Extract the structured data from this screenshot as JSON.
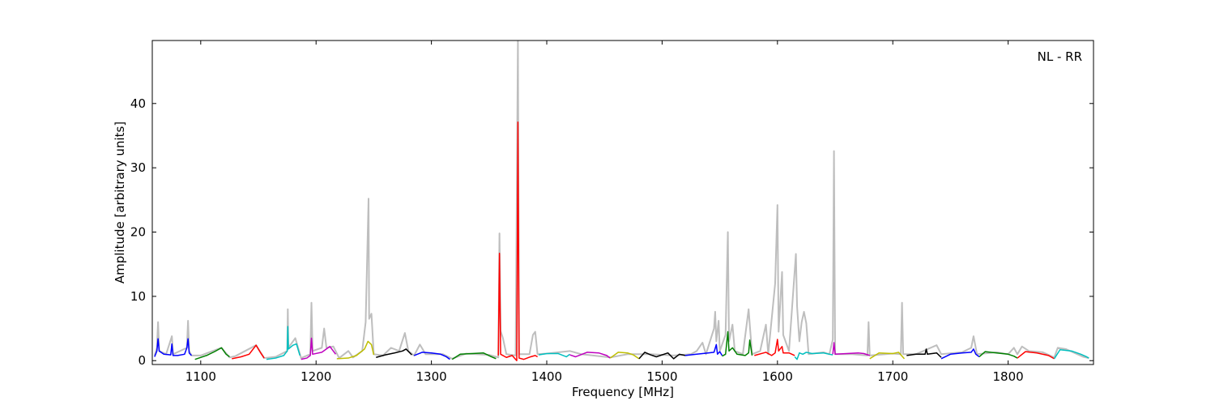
{
  "chart_data": {
    "type": "line",
    "xlabel": "Frequency [MHz]",
    "ylabel": "Amplitude [arbitrary units]",
    "annotation": "NL - RR",
    "xlim": [
      1058,
      1874
    ],
    "ylim": [
      -0.6,
      49.8
    ],
    "xticks": [
      1100,
      1200,
      1300,
      1400,
      1500,
      1600,
      1700,
      1800
    ],
    "yticks": [
      0,
      10,
      20,
      30,
      40
    ],
    "series": [
      {
        "color": "#bebebe",
        "x": [
          1060,
          1062,
          1063,
          1064,
          1070,
          1075,
          1076,
          1088,
          1089,
          1090,
          1092,
          1100,
          1118,
          1125,
          1130,
          1148,
          1155,
          1165,
          1175,
          1175.5,
          1176,
          1182,
          1187,
          1195,
          1196,
          1197,
          1205,
          1207,
          1209,
          1215,
          1220,
          1228,
          1232,
          1240,
          1243,
          1245.5,
          1246,
          1248,
          1250,
          1258,
          1265,
          1272,
          1277,
          1280,
          1285,
          1290,
          1295,
          1310,
          1318,
          1330,
          1350,
          1358,
          1359,
          1360,
          1362,
          1365,
          1373,
          1375,
          1376,
          1385,
          1388,
          1390,
          1392,
          1400,
          1420,
          1430,
          1455,
          1470,
          1490,
          1510,
          1525,
          1530,
          1535,
          1538,
          1545,
          1546,
          1547,
          1549,
          1550,
          1555,
          1557,
          1558,
          1561,
          1563,
          1570,
          1575,
          1576,
          1578,
          1585,
          1590,
          1592,
          1598,
          1600,
          1601,
          1604,
          1605,
          1610,
          1616,
          1617,
          1619,
          1621,
          1623,
          1625,
          1627,
          1640,
          1645,
          1648,
          1649,
          1650,
          1665,
          1678,
          1679,
          1680,
          1700,
          1707,
          1708,
          1709,
          1720,
          1738,
          1742,
          1760,
          1768,
          1770,
          1773,
          1790,
          1800,
          1805,
          1808,
          1812,
          1818,
          1830,
          1840,
          1843,
          1850,
          1865,
          1870
        ],
        "values": [
          0.8,
          2,
          6,
          1.5,
          1,
          3.8,
          1,
          2,
          6.2,
          1.5,
          0.8,
          0.8,
          2,
          0.5,
          0.7,
          2.4,
          0.4,
          0.6,
          1.5,
          8,
          2,
          3.5,
          0.4,
          1,
          9,
          1.5,
          2,
          5,
          2,
          2.2,
          0.4,
          1.5,
          0.5,
          1.5,
          6,
          25.2,
          6.5,
          7.3,
          1,
          0.8,
          2,
          1.5,
          4.3,
          1.5,
          0.8,
          2.5,
          1,
          1,
          0.3,
          1.1,
          0.9,
          0.5,
          19.8,
          4.6,
          3.5,
          1,
          0.8,
          50,
          1,
          1,
          4,
          4.5,
          1,
          1.1,
          1.5,
          1,
          0.5,
          1,
          1,
          0.8,
          1,
          1.5,
          2.8,
          1,
          5,
          7.6,
          3,
          6.2,
          1.5,
          4,
          20,
          3,
          5.6,
          1.5,
          1,
          8,
          5.6,
          1,
          1.5,
          5.6,
          1,
          12,
          24.2,
          4.5,
          13.8,
          4,
          1.5,
          16.6,
          8.5,
          3,
          6,
          7.6,
          5.8,
          1,
          1.3,
          1,
          3.3,
          32.6,
          1,
          1,
          0.8,
          6,
          0.8,
          1.1,
          1,
          9,
          1,
          1,
          2.4,
          1,
          1.3,
          2,
          3.8,
          1,
          1.3,
          1,
          2,
          1,
          2.2,
          1.5,
          1.3,
          0.5,
          2,
          1.8,
          0.6,
          0.4
        ]
      },
      {
        "color": "#0000ff",
        "x": [
          1060,
          1062,
          1063,
          1064,
          1068,
          1074,
          1075,
          1076,
          1080,
          1086,
          1088,
          1089,
          1090,
          1092
        ],
        "values": [
          0.6,
          1.5,
          3.4,
          1.5,
          1,
          0.9,
          2.6,
          0.8,
          0.8,
          1,
          2,
          3.4,
          1.2,
          0.8
        ]
      },
      {
        "color": "#008000",
        "x": [
          1095,
          1105,
          1112,
          1118,
          1122,
          1125
        ],
        "values": [
          0.2,
          0.8,
          1.4,
          2,
          1,
          0.6
        ]
      },
      {
        "color": "#ff0000",
        "x": [
          1127,
          1135,
          1142,
          1148,
          1152,
          1155
        ],
        "values": [
          0.3,
          0.6,
          1,
          2.4,
          1.2,
          0.4
        ]
      },
      {
        "color": "#00bfbf",
        "x": [
          1157,
          1165,
          1172,
          1175,
          1175.5,
          1176,
          1180,
          1183,
          1186
        ],
        "values": [
          0.2,
          0.4,
          0.8,
          1.5,
          5.3,
          1.8,
          2.4,
          2.6,
          0.8
        ]
      },
      {
        "color": "#bf00bf",
        "x": [
          1187,
          1192,
          1195,
          1196,
          1197,
          1205,
          1212,
          1217
        ],
        "values": [
          0.2,
          0.4,
          0.8,
          3.5,
          1,
          1.3,
          2.2,
          1
        ]
      },
      {
        "color": "#bfbf00",
        "x": [
          1218,
          1228,
          1235,
          1242,
          1245,
          1248,
          1250
        ],
        "values": [
          0.3,
          0.4,
          0.8,
          1.8,
          3,
          2.5,
          0.9
        ]
      },
      {
        "color": "#000000",
        "x": [
          1252,
          1260,
          1268,
          1275,
          1278,
          1283
        ],
        "values": [
          0.5,
          0.9,
          1.2,
          1.5,
          1.8,
          0.9
        ]
      },
      {
        "color": "#0000ff",
        "x": [
          1285,
          1292,
          1300,
          1308,
          1313,
          1316
        ],
        "values": [
          0.8,
          1.3,
          1.2,
          1,
          0.6,
          0.2
        ]
      },
      {
        "color": "#008000",
        "x": [
          1318,
          1325,
          1335,
          1345,
          1352,
          1356
        ],
        "values": [
          0.2,
          1,
          1.1,
          1.2,
          0.6,
          0.3
        ]
      },
      {
        "color": "#ff0000",
        "x": [
          1358,
          1359,
          1360,
          1365,
          1370,
          1374,
          1375,
          1376,
          1380,
          1386,
          1390,
          1392
        ],
        "values": [
          0.8,
          16.7,
          1,
          0.5,
          0.8,
          0,
          37.1,
          0.4,
          0.2,
          0.6,
          0.8,
          0.6
        ]
      },
      {
        "color": "#00bfbf",
        "x": [
          1393,
          1400,
          1410,
          1417,
          1420
        ],
        "values": [
          0.9,
          1.1,
          1.1,
          0.6,
          1
        ]
      },
      {
        "color": "#bf00bf",
        "x": [
          1420,
          1425,
          1435,
          1445,
          1452,
          1455
        ],
        "values": [
          0.9,
          0.6,
          1.3,
          1.2,
          0.8,
          0.4
        ]
      },
      {
        "color": "#bfbf00",
        "x": [
          1455,
          1462,
          1470,
          1475,
          1480
        ],
        "values": [
          0.4,
          1.3,
          1.2,
          0.9,
          0.3
        ]
      },
      {
        "color": "#000000",
        "x": [
          1480,
          1485,
          1490,
          1495,
          1505,
          1510,
          1515,
          1520
        ],
        "values": [
          0.3,
          1.3,
          0.9,
          0.6,
          1.2,
          0.3,
          1,
          0.8
        ]
      },
      {
        "color": "#0000ff",
        "x": [
          1520,
          1530,
          1540,
          1545,
          1547,
          1548,
          1550,
          1552
        ],
        "values": [
          0.8,
          1,
          1.2,
          1.3,
          2.5,
          1,
          1.4,
          0.8
        ]
      },
      {
        "color": "#008000",
        "x": [
          1552,
          1555,
          1557,
          1558,
          1561,
          1565,
          1572,
          1575,
          1576,
          1578
        ],
        "values": [
          0.7,
          1,
          4.5,
          1.5,
          2,
          1,
          0.8,
          1.2,
          3.2,
          0.8
        ]
      },
      {
        "color": "#ff0000",
        "x": [
          1580,
          1590,
          1595,
          1598,
          1600,
          1601,
          1604,
          1605,
          1610,
          1615
        ],
        "values": [
          0.8,
          1.3,
          0.8,
          1.2,
          3.3,
          1.5,
          2.2,
          1.2,
          1.2,
          0.8
        ]
      },
      {
        "color": "#00bfbf",
        "x": [
          1615,
          1617,
          1619,
          1622,
          1625,
          1630,
          1640,
          1645,
          1648
        ],
        "values": [
          0.6,
          0.2,
          1.2,
          1,
          1.3,
          1.1,
          1.2,
          1,
          0.9
        ]
      },
      {
        "color": "#bf00bf",
        "x": [
          1648,
          1649,
          1650,
          1660,
          1670,
          1675,
          1680
        ],
        "values": [
          1,
          2.8,
          1,
          1.1,
          1.2,
          1.1,
          0.8
        ]
      },
      {
        "color": "#bfbf00",
        "x": [
          1680,
          1688,
          1700,
          1705,
          1710
        ],
        "values": [
          0.3,
          1.2,
          1.1,
          1.3,
          0.3
        ]
      },
      {
        "color": "#000000",
        "x": [
          1712,
          1720,
          1728,
          1729,
          1730,
          1738,
          1742
        ],
        "values": [
          0.8,
          1,
          1,
          1.8,
          1,
          1.2,
          0.5
        ]
      },
      {
        "color": "#0000ff",
        "x": [
          1742,
          1750,
          1760,
          1768,
          1770,
          1772,
          1775
        ],
        "values": [
          0.3,
          1,
          1.2,
          1.3,
          1.8,
          1,
          0.6
        ]
      },
      {
        "color": "#008000",
        "x": [
          1775,
          1780,
          1790,
          1800,
          1805,
          1808
        ],
        "values": [
          0.6,
          1.4,
          1.2,
          1,
          0.7,
          0.4
        ]
      },
      {
        "color": "#ff0000",
        "x": [
          1808,
          1815,
          1825,
          1835,
          1840
        ],
        "values": [
          0.4,
          1.4,
          1.2,
          0.8,
          0.3
        ]
      },
      {
        "color": "#00bfbf",
        "x": [
          1840,
          1845,
          1855,
          1863,
          1868,
          1870
        ],
        "values": [
          0.3,
          1.7,
          1.5,
          1,
          0.6,
          0.4
        ]
      }
    ]
  }
}
